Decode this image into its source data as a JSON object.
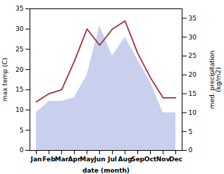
{
  "chart_data": {
    "type": "line",
    "xlabel": "date (month)",
    "ylabel": "max temp (C)",
    "y2label": "med. precipitation\n(kg/m2)",
    "categories": [
      "Jan",
      "Feb",
      "Mar",
      "Apr",
      "May",
      "Jun",
      "Jul",
      "Aug",
      "Sep",
      "Oct",
      "Nov",
      "Dec"
    ],
    "series": [
      {
        "type": "line",
        "color": "#a03040",
        "values": [
          12,
          14,
          15,
          22,
          30,
          26,
          30,
          32,
          24,
          18,
          13,
          13
        ]
      },
      {
        "type": "area",
        "axis": "y2",
        "color": "#c8d0ee",
        "values": [
          10,
          13,
          13,
          14,
          20,
          33,
          25,
          30,
          24,
          18,
          10,
          10
        ]
      }
    ],
    "ylim": [
      0,
      35
    ],
    "yticks": [
      0,
      5,
      10,
      15,
      20,
      25,
      30,
      35
    ],
    "y2lim": [
      0,
      37.5
    ],
    "y2ticks": [
      0,
      5,
      10,
      15,
      20,
      25,
      30,
      35
    ],
    "grid": false
  }
}
